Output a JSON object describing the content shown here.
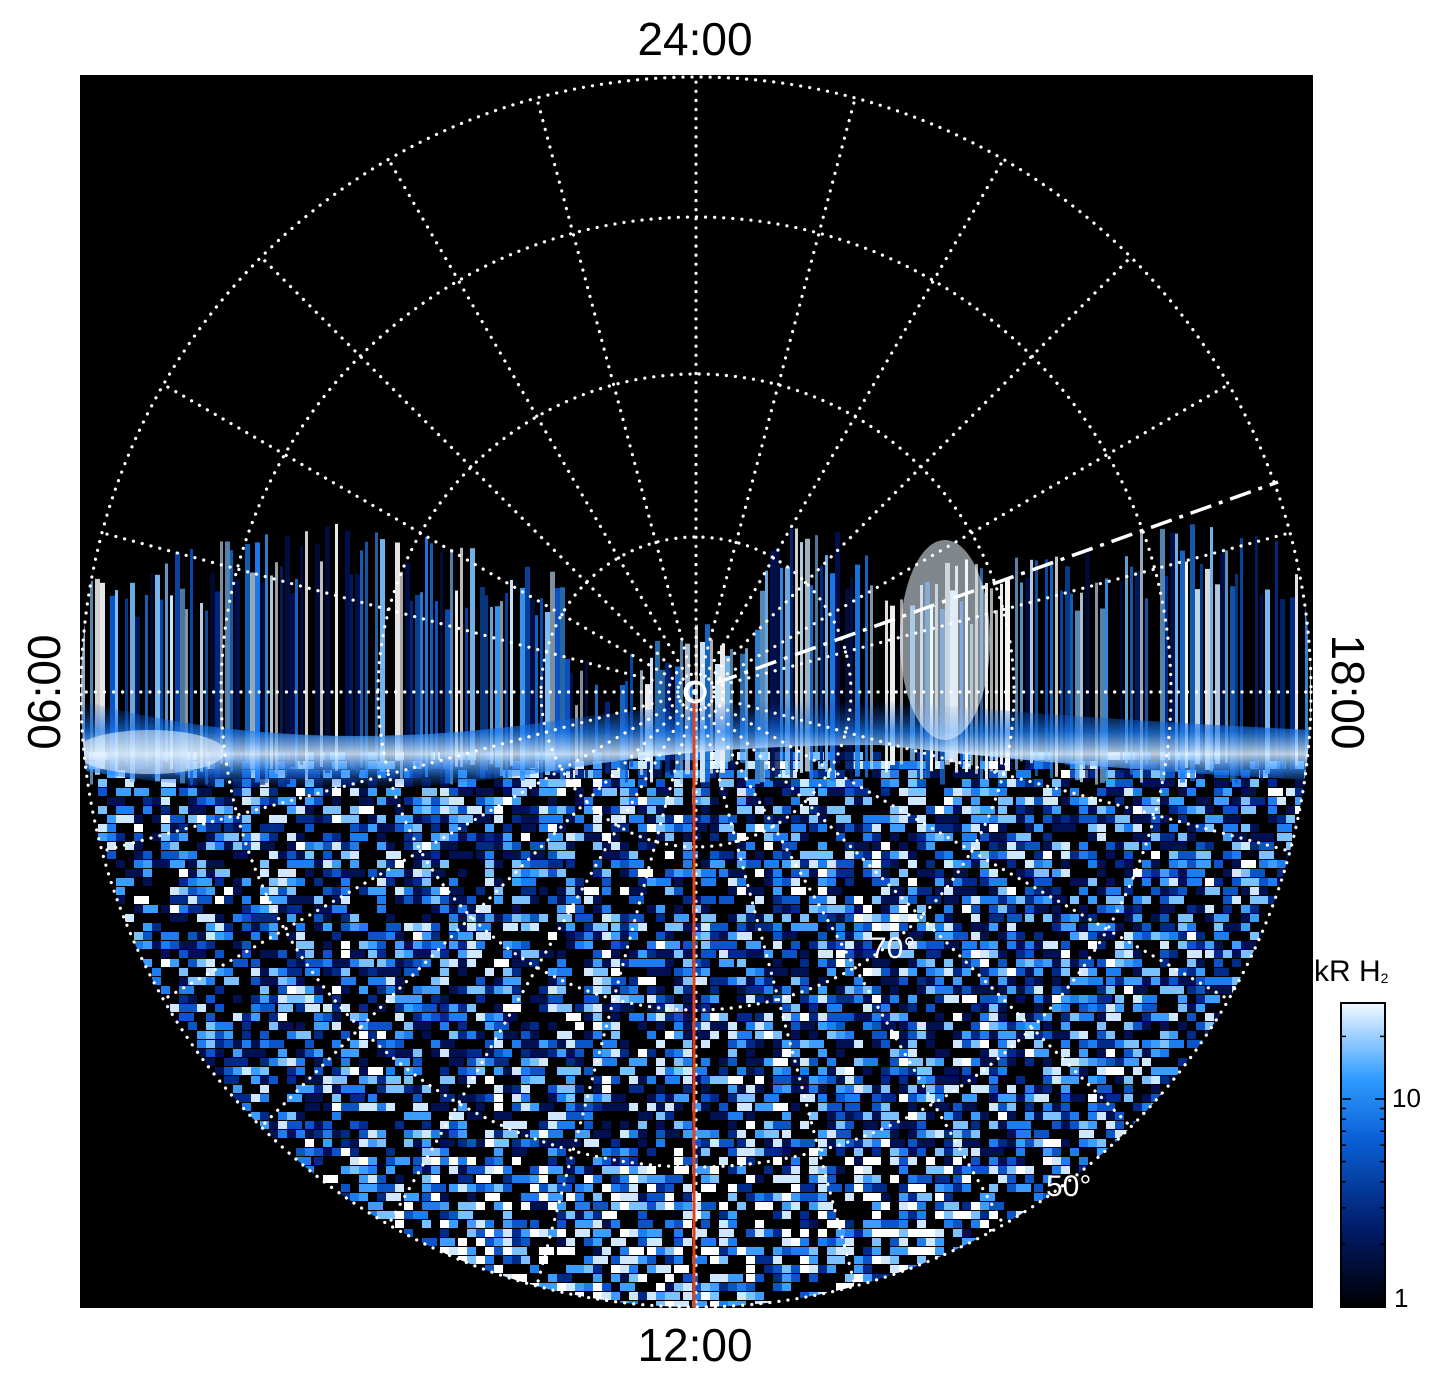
{
  "figure": {
    "local_time_labels": {
      "top": "24:00",
      "bottom": "12:00",
      "left": "06:00",
      "right": "18:00"
    },
    "latitude_labels": [
      {
        "text": "70°",
        "deg": 70
      },
      {
        "text": "50°",
        "deg": 50
      }
    ],
    "colorbar": {
      "unit": "kR H",
      "unit_subscript": "2",
      "ticks": [
        "10",
        "1"
      ]
    },
    "colors": {
      "background": "#000000",
      "grid": "#ffffff",
      "meridian_line": "#e0401a",
      "aurora_light": "#e8f4ff",
      "aurora_mid": "#1f8fff",
      "aurora_dark": "#001a66"
    }
  }
}
